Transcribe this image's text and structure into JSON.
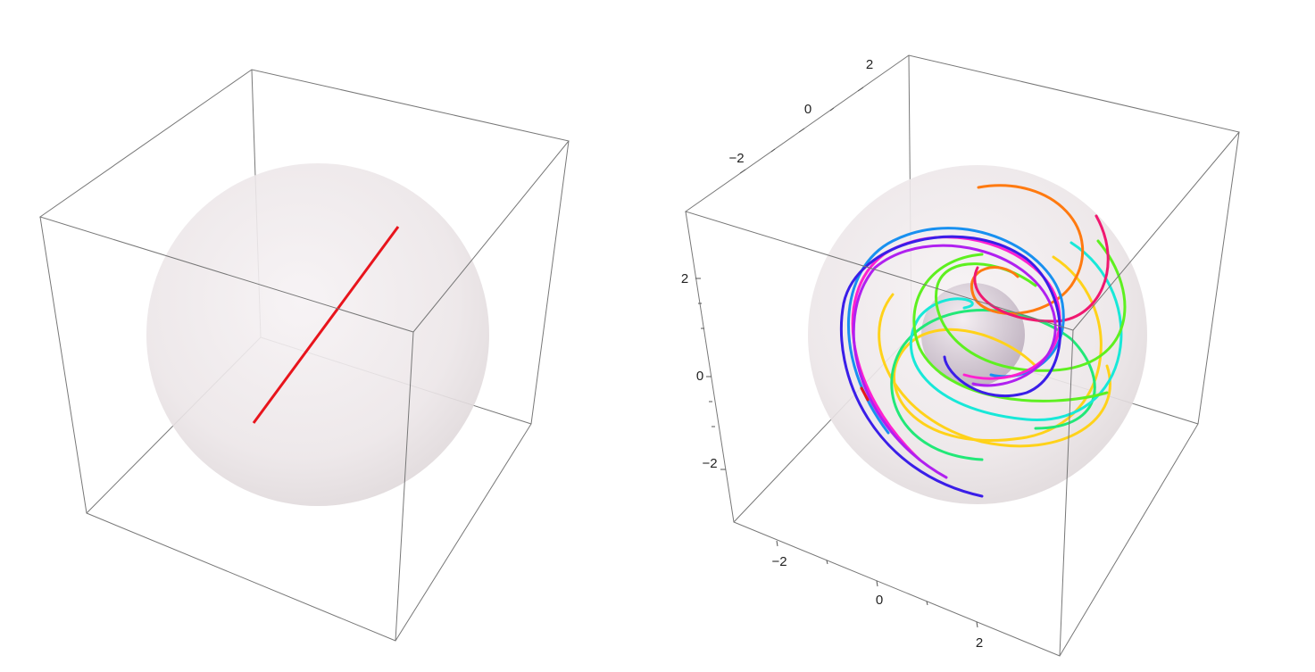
{
  "right_plot": {
    "top_axis_labels": [
      "−2",
      "0",
      "2"
    ],
    "left_axis_labels": [
      "2",
      "0",
      "−2"
    ],
    "bottom_axis_labels": [
      "−2",
      "0",
      "2"
    ]
  }
}
